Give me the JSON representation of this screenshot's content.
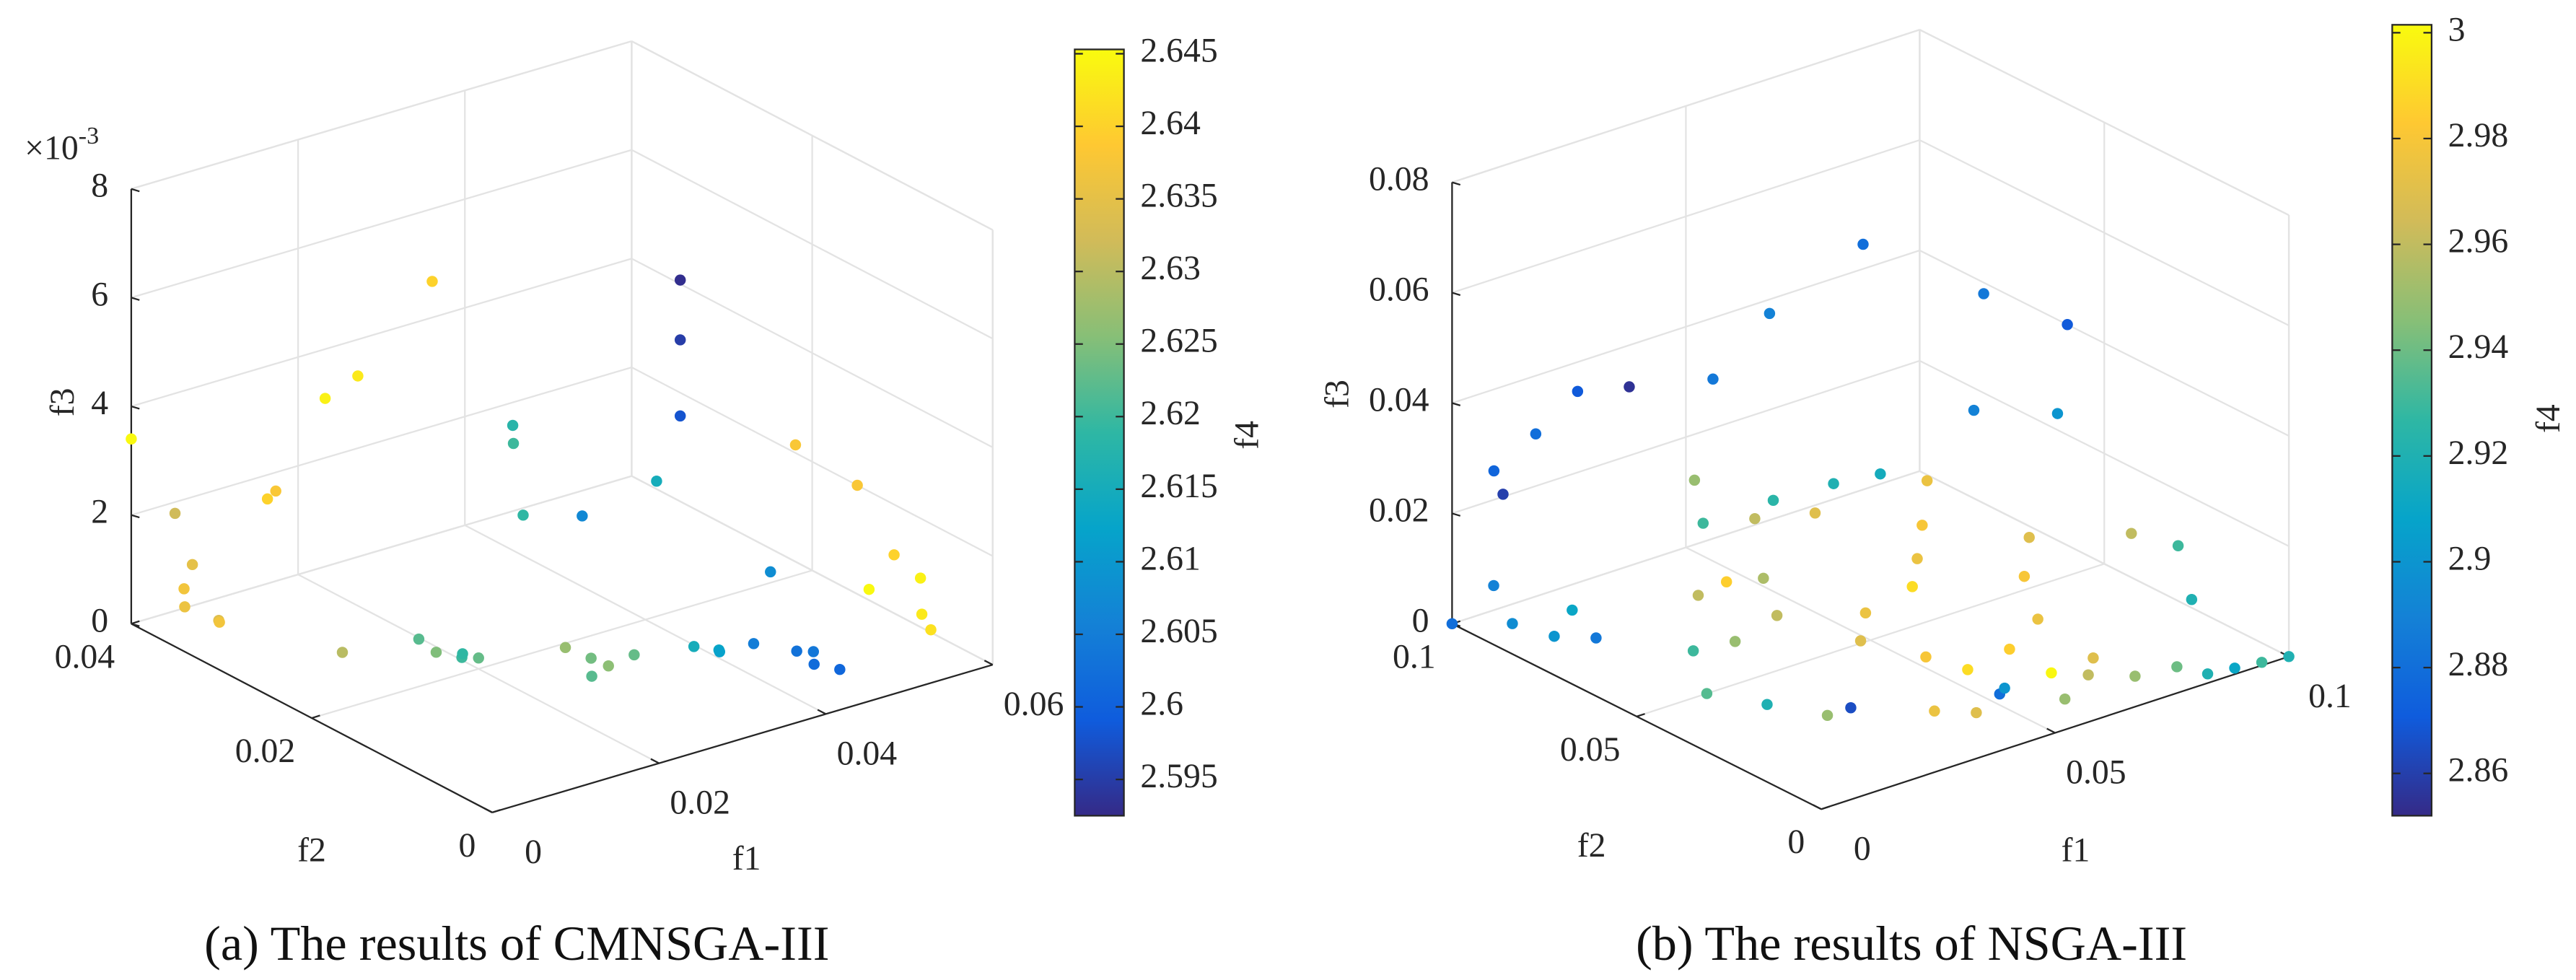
{
  "chart_data": [
    {
      "type": "scatter3d",
      "caption": "(a) The results of CMNSGA-III",
      "xlabel": "f1",
      "ylabel": "f2",
      "zlabel": "f3",
      "clabel": "f4",
      "z_multiplier": "×10",
      "z_exponent": "-3",
      "xlim": [
        0,
        0.06
      ],
      "xticks": [
        0,
        0.02,
        0.04,
        0.06
      ],
      "ylim": [
        0,
        0.04
      ],
      "yticks": [
        0,
        0.02,
        0.04
      ],
      "zlim": [
        0,
        8
      ],
      "zticks": [
        0,
        2,
        4,
        6,
        8
      ],
      "clim": [
        2.5925,
        2.6453
      ],
      "cticks": [
        2.595,
        2.6,
        2.605,
        2.61,
        2.615,
        2.62,
        2.625,
        2.63,
        2.635,
        2.64,
        2.645
      ],
      "colormap": "parula",
      "grid": true,
      "x": [
        0,
        0.002,
        0.003,
        0.002,
        0.001,
        0.004,
        0.003,
        0.012,
        0.013,
        0.02,
        0.025,
        0.035,
        0.015,
        0.016,
        0.018,
        0.017,
        0.02,
        0.008,
        0.025,
        0.027,
        0.028,
        0.03,
        0.026,
        0.035,
        0.036,
        0.034,
        0.035,
        0.038,
        0.037,
        0.04,
        0.043,
        0.044,
        0.045,
        0.046,
        0.055,
        0.055,
        0.055,
        0.04,
        0.05,
        0.055,
        0.058,
        0.06,
        0.059,
        0.06,
        0.058,
        0.058,
        0.056
      ],
      "y": [
        0.04,
        0.037,
        0.036,
        0.036,
        0.035,
        0.034,
        0.033,
        0.036,
        0.036,
        0.037,
        0.038,
        0.039,
        0.022,
        0.021,
        0.02,
        0.019,
        0.02,
        0.024,
        0.015,
        0.014,
        0.013,
        0.012,
        0.013,
        0.03,
        0.031,
        0.028,
        0.01,
        0.01,
        0.009,
        0.008,
        0.006,
        0.005,
        0.006,
        0.004,
        0.03,
        0.03,
        0.03,
        0.027,
        0.028,
        0.02,
        0.02,
        0.015,
        0.01,
        0.008,
        0.006,
        0.005,
        0.01
      ],
      "z": [
        3.4,
        2.2,
        1.3,
        0.9,
        0.7,
        0.4,
        0.5,
        2.1,
        2.2,
        3.5,
        3.6,
        4.8,
        0.6,
        0.4,
        0.3,
        0.5,
        0.2,
        0.5,
        0.6,
        0.4,
        0.3,
        0.5,
        0.2,
        2.6,
        2.8,
        1.5,
        0.6,
        0.4,
        0.5,
        0.6,
        0.5,
        0.3,
        0.4,
        0.2,
        4.7,
        3.6,
        2.2,
        1.3,
        1.4,
        0.2,
        2.4,
        2,
        1.2,
        0.9,
        0.5,
        0.3,
        0.7
      ],
      "c": [
        2.645,
        2.632,
        2.635,
        2.637,
        2.636,
        2.634,
        2.637,
        2.64,
        2.638,
        2.644,
        2.643,
        2.64,
        2.622,
        2.625,
        2.62,
        2.619,
        2.623,
        2.63,
        2.627,
        2.624,
        2.626,
        2.623,
        2.622,
        2.62,
        2.618,
        2.619,
        2.615,
        2.613,
        2.612,
        2.605,
        2.603,
        2.602,
        2.604,
        2.601,
        2.593,
        2.595,
        2.598,
        2.607,
        2.615,
        2.608,
        2.638,
        2.638,
        2.64,
        2.644,
        2.643,
        2.642,
        2.645
      ]
    },
    {
      "type": "scatter3d",
      "caption": "(b) The results of NSGA-III",
      "xlabel": "f1",
      "ylabel": "f2",
      "zlabel": "f3",
      "clabel": "f4",
      "xlim": [
        0,
        0.1
      ],
      "xticks": [
        0,
        0.05,
        0.1
      ],
      "ylim": [
        0,
        0.1
      ],
      "yticks": [
        0,
        0.05,
        0.1
      ],
      "zlim": [
        0,
        0.08
      ],
      "zticks": [
        0,
        0.02,
        0.04,
        0.06,
        0.08
      ],
      "clim": [
        2.852,
        3.0015
      ],
      "cticks": [
        2.86,
        2.88,
        2.9,
        2.92,
        2.94,
        2.96,
        2.98,
        3
      ],
      "colormap": "parula",
      "grid": true,
      "x": [
        0.03,
        0.015,
        0.01,
        0.005,
        0.003,
        0.04,
        0.06,
        0.08,
        0.09,
        0.1,
        0.08,
        0.09,
        0.05,
        0.06,
        0.03,
        0.045,
        0.002,
        0.001,
        0,
        0.005,
        0.01,
        0.015,
        0.02,
        0.025,
        0.03,
        0.035,
        0.04,
        0.045,
        0.05,
        0.055,
        0.06,
        0.065,
        0.07,
        0.075,
        0.08,
        0.085,
        0.09,
        0.095,
        0.1,
        0.03,
        0.02,
        0.015,
        0.025,
        0.04,
        0.045,
        0.05,
        0.055,
        0.06,
        0.065,
        0.07,
        0.075,
        0.08,
        0.09,
        0.1,
        0.095,
        0.06,
        0.065,
        0.07,
        0.05,
        0.045,
        0.04,
        0.035,
        0.025,
        0.055
      ],
      "y": [
        0.09,
        0.085,
        0.09,
        0.095,
        0.09,
        0.08,
        0.09,
        0.09,
        0.07,
        0.06,
        0.06,
        0.05,
        0.06,
        0.06,
        0.07,
        0.07,
        0.07,
        0.09,
        0.1,
        0.09,
        0.085,
        0.08,
        0.06,
        0.055,
        0.05,
        0.06,
        0.04,
        0.045,
        0.035,
        0.03,
        0.025,
        0.02,
        0.015,
        0.01,
        0.005,
        0.003,
        0.002,
        0.001,
        0,
        0.03,
        0.04,
        0.05,
        0.03,
        0.02,
        0.015,
        0.015,
        0.02,
        0.01,
        0.01,
        0.03,
        0.04,
        0.045,
        0.03,
        0.03,
        0.02,
        0.05,
        0.055,
        0.06,
        0.065,
        0.075,
        0.085,
        0.07,
        0.065,
        0.045
      ],
      "z": [
        0.038,
        0.043,
        0.035,
        0.028,
        0.026,
        0.04,
        0.043,
        0.05,
        0.045,
        0.04,
        0.03,
        0.03,
        0.025,
        0.024,
        0.02,
        0.02,
        0.012,
        0.01,
        0,
        0.002,
        0,
        0,
        0.003,
        0.005,
        0.01,
        0.012,
        0.006,
        0.008,
        0.002,
        0,
        0.004,
        0,
        0.003,
        0,
        0.002,
        0,
        0,
        0,
        0,
        0,
        0,
        0,
        0,
        0,
        0,
        0.002,
        0,
        0,
        0.003,
        0.005,
        0.008,
        0.012,
        0.015,
        0.01,
        0.005,
        0.012,
        0.015,
        0.02,
        0.018,
        0.015,
        0.02,
        0.008,
        0.01,
        0.01
      ],
      "c": [
        2.855,
        2.87,
        2.88,
        2.875,
        2.86,
        2.885,
        2.89,
        2.88,
        2.885,
        2.87,
        2.89,
        2.9,
        2.92,
        2.915,
        2.93,
        2.925,
        2.91,
        2.89,
        2.88,
        2.895,
        2.9,
        2.885,
        2.93,
        2.95,
        2.96,
        2.955,
        2.97,
        2.975,
        2.98,
        2.99,
        2.985,
        3,
        2.97,
        2.95,
        2.94,
        2.92,
        2.91,
        2.93,
        2.92,
        2.865,
        2.92,
        2.935,
        2.95,
        2.975,
        2.97,
        2.88,
        2.9,
        2.95,
        2.96,
        2.975,
        2.98,
        2.97,
        2.96,
        2.93,
        2.92,
        2.975,
        2.98,
        2.975,
        2.97,
        2.96,
        2.95,
        2.985,
        2.96,
        2.99
      ]
    }
  ]
}
